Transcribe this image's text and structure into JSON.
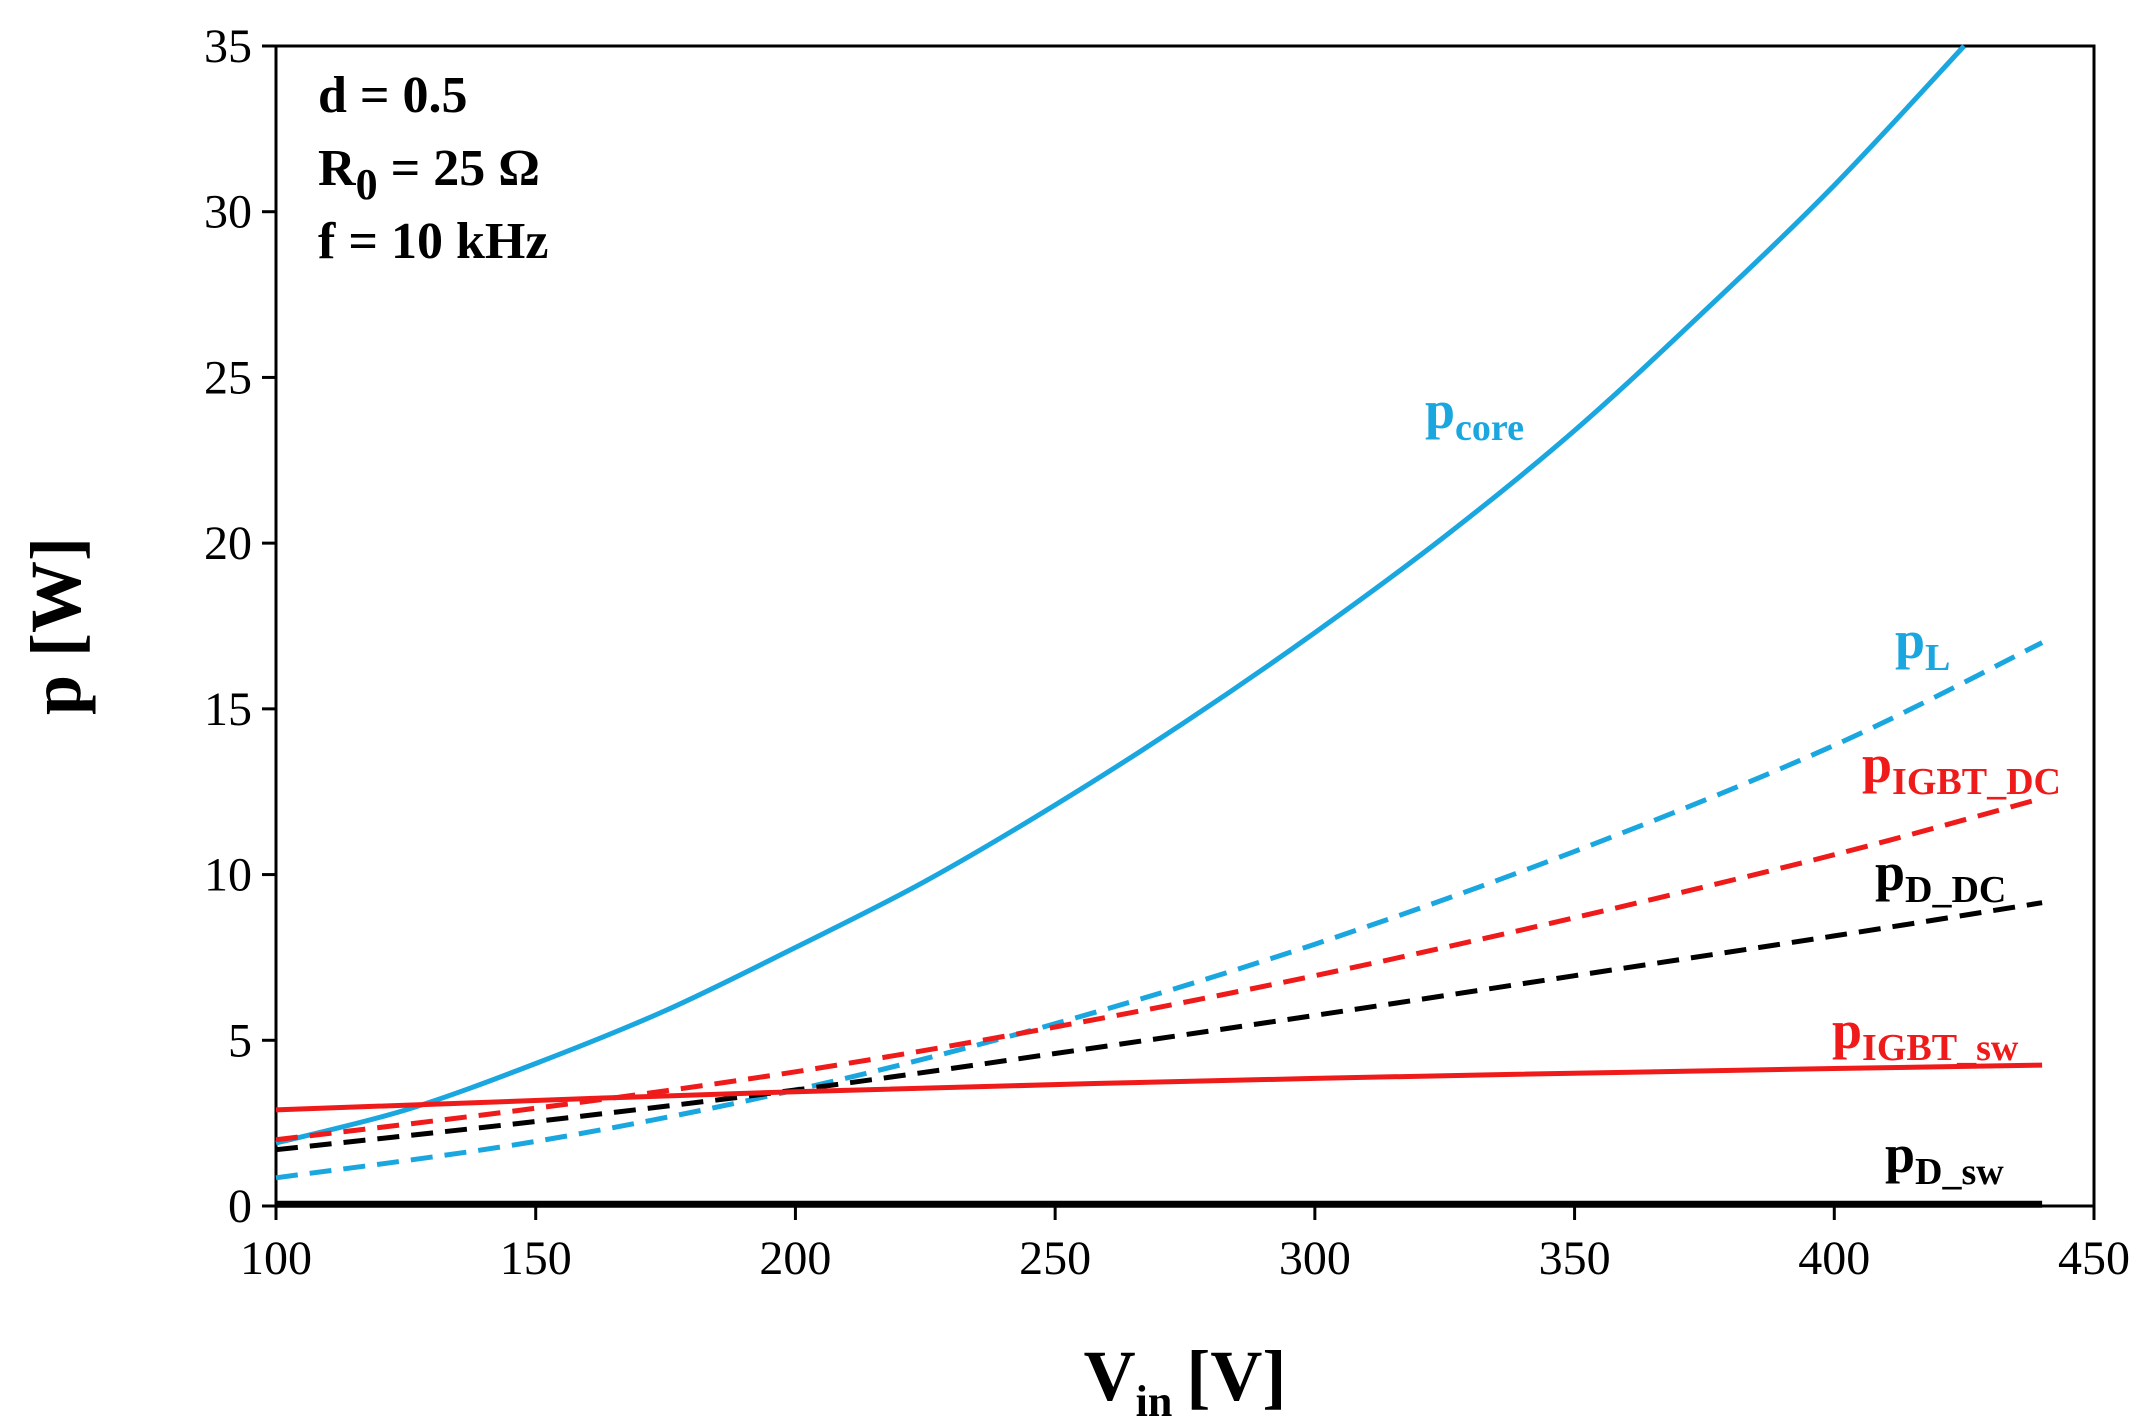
{
  "chart_data": {
    "type": "line",
    "title": "",
    "xlabel": {
      "main": "V",
      "sub": "in",
      "unit": "[V]"
    },
    "ylabel": "p [W]",
    "xlim": [
      100,
      450
    ],
    "ylim": [
      0,
      35
    ],
    "xticks": [
      "100",
      "150",
      "200",
      "250",
      "300",
      "350",
      "400",
      "450"
    ],
    "yticks": [
      "0",
      "5",
      "10",
      "15",
      "20",
      "25",
      "30",
      "35"
    ],
    "grid": false,
    "annotations": [
      {
        "id": "d",
        "main": "d = 0.5",
        "sub": "",
        "rest": ""
      },
      {
        "id": "r0",
        "main": "R",
        "sub": "0",
        "rest": " = 25 Ω"
      },
      {
        "id": "f",
        "main": "f = 10 kHz",
        "sub": "",
        "rest": ""
      }
    ],
    "series": [
      {
        "name": "p_core",
        "label_main": "p",
        "label_sub": "core",
        "color": "#1aa7e0",
        "style": "solid",
        "x": [
          100,
          125,
          150,
          175,
          200,
          225,
          250,
          275,
          300,
          325,
          350,
          375,
          400,
          425
        ],
        "y": [
          1.9,
          2.9,
          4.3,
          5.9,
          7.8,
          9.8,
          12.1,
          14.6,
          17.3,
          20.2,
          23.4,
          27.0,
          30.8,
          35.0
        ]
      },
      {
        "name": "p_L",
        "label_main": "p",
        "label_sub": "L",
        "color": "#1aa7e0",
        "style": "dashed",
        "x": [
          100,
          150,
          200,
          250,
          300,
          350,
          400,
          440
        ],
        "y": [
          0.85,
          1.95,
          3.5,
          5.5,
          7.9,
          10.7,
          13.9,
          17.0
        ]
      },
      {
        "name": "p_IGBT_DC",
        "label_main": "p",
        "label_sub": "IGBT_DC",
        "color": "#ef1a1a",
        "style": "dashed",
        "x": [
          100,
          150,
          200,
          250,
          300,
          350,
          400,
          440
        ],
        "y": [
          2.0,
          2.95,
          4.05,
          5.4,
          6.95,
          8.7,
          10.6,
          12.3
        ]
      },
      {
        "name": "p_D_DC",
        "label_main": "p",
        "label_sub": "D_DC",
        "color": "#000000",
        "style": "dashed",
        "x": [
          100,
          150,
          200,
          250,
          300,
          350,
          400,
          440
        ],
        "y": [
          1.7,
          2.55,
          3.5,
          4.6,
          5.75,
          6.95,
          8.15,
          9.15
        ]
      },
      {
        "name": "p_IGBT_sw",
        "label_main": "p",
        "label_sub": "IGBT_sw",
        "color": "#ef1a1a",
        "style": "solid",
        "x": [
          100,
          200,
          300,
          400,
          440
        ],
        "y": [
          2.9,
          3.45,
          3.85,
          4.15,
          4.25
        ]
      },
      {
        "name": "p_D_sw",
        "label_main": "p",
        "label_sub": "D_sw",
        "color": "#000000",
        "style": "solid",
        "x": [
          100,
          440
        ],
        "y": [
          0.05,
          0.05
        ]
      }
    ]
  }
}
